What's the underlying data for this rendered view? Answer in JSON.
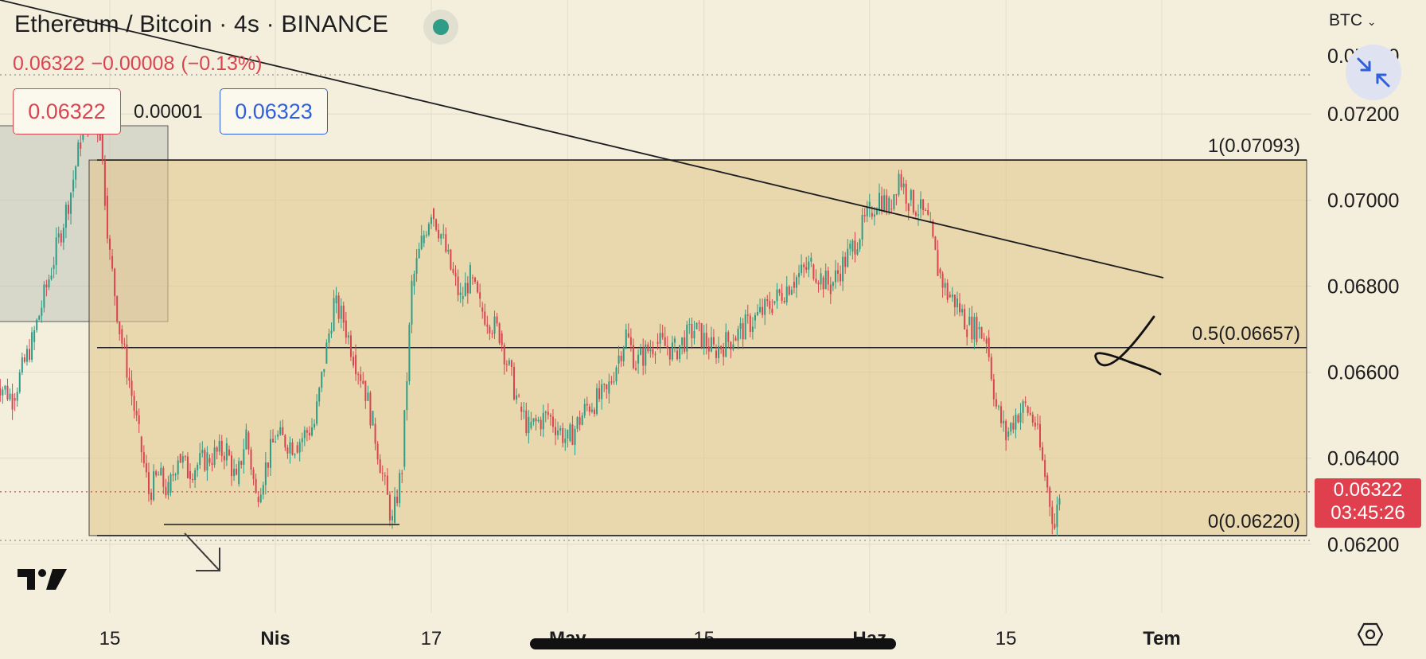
{
  "header": {
    "title": "Ethereum / Bitcoin · 4s · BINANCE",
    "last": "0.06322",
    "change": "−0.00008",
    "change_pct": "(−0.13%)",
    "bid": "0.06322",
    "spread": "0.00001",
    "ask": "0.06323",
    "currency": "BTC"
  },
  "price_tag": {
    "price": "0.06322",
    "countdown": "03:45:26"
  },
  "colors": {
    "background": "#f3efdc",
    "up": "#2e9c86",
    "down": "#d94450",
    "zone": "#e3c68f",
    "live_dot": "#2e9c86",
    "bid_border": "#d94450",
    "ask_border": "#2f5fdb"
  },
  "icons": {
    "live": "live-status-dot",
    "collapse": "collapse-arrows-icon",
    "settings": "settings-hexagon-icon",
    "logo": "tradingview-logo-icon"
  },
  "chart_data": {
    "type": "candlestick",
    "symbol": "ETHBTC",
    "y_axis": {
      "ticks": [
        "0.07200",
        "0.07000",
        "0.06800",
        "0.06600",
        "0.06400",
        "0.06200"
      ],
      "top_partial_tick": "0.07400",
      "range": [
        0.0617,
        0.07465
      ]
    },
    "x_axis": {
      "labels": [
        {
          "label": "15",
          "date": "2023-03-15"
        },
        {
          "label": "Nis",
          "date": "2023-04-01"
        },
        {
          "label": "17",
          "date": "2023-04-17"
        },
        {
          "label": "May",
          "date": "2023-05-01"
        },
        {
          "label": "15",
          "date": "2023-05-15"
        },
        {
          "label": "Haz",
          "date": "2023-06-01"
        },
        {
          "label": "15",
          "date": "2023-06-15"
        },
        {
          "label": "Tem",
          "date": "2023-07-01"
        }
      ]
    },
    "fib_levels": [
      {
        "label": "1(0.07093)",
        "value": 0.07093
      },
      {
        "label": "0.5(0.06657)",
        "value": 0.06657
      },
      {
        "label": "0(0.06220)",
        "value": 0.0622
      }
    ],
    "price_line": 0.06322,
    "price_series": [
      [
        "2023-03-03",
        0.0659
      ],
      [
        "2023-03-05",
        0.0654
      ],
      [
        "2023-03-07",
        0.0667
      ],
      [
        "2023-03-09",
        0.0684
      ],
      [
        "2023-03-11",
        0.0702
      ],
      [
        "2023-03-12",
        0.0714
      ],
      [
        "2023-03-13",
        0.072
      ],
      [
        "2023-03-14",
        0.0716
      ],
      [
        "2023-03-14T12",
        0.0701
      ],
      [
        "2023-03-15",
        0.0687
      ],
      [
        "2023-03-16",
        0.067
      ],
      [
        "2023-03-17",
        0.0658
      ],
      [
        "2023-03-18",
        0.0645
      ],
      [
        "2023-03-19",
        0.0632
      ],
      [
        "2023-03-20",
        0.0636
      ],
      [
        "2023-03-21",
        0.0632
      ],
      [
        "2023-03-22",
        0.0641
      ],
      [
        "2023-03-23",
        0.0637
      ],
      [
        "2023-03-25",
        0.064
      ],
      [
        "2023-03-27",
        0.0642
      ],
      [
        "2023-03-28",
        0.0634
      ],
      [
        "2023-03-29",
        0.0646
      ],
      [
        "2023-03-30",
        0.0631
      ],
      [
        "2023-04-01",
        0.0645
      ],
      [
        "2023-04-03",
        0.0643
      ],
      [
        "2023-04-05",
        0.0648
      ],
      [
        "2023-04-06",
        0.0662
      ],
      [
        "2023-04-07",
        0.0676
      ],
      [
        "2023-04-08",
        0.0672
      ],
      [
        "2023-04-09",
        0.0664
      ],
      [
        "2023-04-10",
        0.0658
      ],
      [
        "2023-04-11",
        0.0648
      ],
      [
        "2023-04-12",
        0.0636
      ],
      [
        "2023-04-13",
        0.0625
      ],
      [
        "2023-04-14",
        0.0638
      ],
      [
        "2023-04-15",
        0.068
      ],
      [
        "2023-04-16",
        0.069
      ],
      [
        "2023-04-17",
        0.0698
      ],
      [
        "2023-04-18",
        0.0692
      ],
      [
        "2023-04-19",
        0.0684
      ],
      [
        "2023-04-20",
        0.0677
      ],
      [
        "2023-04-21",
        0.0682
      ],
      [
        "2023-04-22",
        0.0675
      ],
      [
        "2023-04-24",
        0.0669
      ],
      [
        "2023-04-26",
        0.0652
      ],
      [
        "2023-04-27",
        0.0647
      ],
      [
        "2023-04-29",
        0.065
      ],
      [
        "2023-05-01",
        0.0644
      ],
      [
        "2023-05-03",
        0.0652
      ],
      [
        "2023-05-05",
        0.0655
      ],
      [
        "2023-05-06",
        0.0662
      ],
      [
        "2023-05-07",
        0.0669
      ],
      [
        "2023-05-08",
        0.0662
      ],
      [
        "2023-05-10",
        0.0667
      ],
      [
        "2023-05-12",
        0.0665
      ],
      [
        "2023-05-14",
        0.067
      ],
      [
        "2023-05-16",
        0.0665
      ],
      [
        "2023-05-18",
        0.0668
      ],
      [
        "2023-05-20",
        0.0672
      ],
      [
        "2023-05-22",
        0.0676
      ],
      [
        "2023-05-24",
        0.0681
      ],
      [
        "2023-05-26",
        0.0685
      ],
      [
        "2023-05-27",
        0.0682
      ],
      [
        "2023-05-28",
        0.068
      ],
      [
        "2023-05-30",
        0.0688
      ],
      [
        "2023-06-01",
        0.0697
      ],
      [
        "2023-06-02",
        0.0701
      ],
      [
        "2023-06-03",
        0.0698
      ],
      [
        "2023-06-04",
        0.0706
      ],
      [
        "2023-06-05",
        0.07
      ],
      [
        "2023-06-06",
        0.0698
      ],
      [
        "2023-06-07",
        0.0695
      ],
      [
        "2023-06-08",
        0.0684
      ],
      [
        "2023-06-09",
        0.0678
      ],
      [
        "2023-06-10",
        0.0676
      ],
      [
        "2023-06-11",
        0.0671
      ],
      [
        "2023-06-12",
        0.067
      ],
      [
        "2023-06-13",
        0.0668
      ],
      [
        "2023-06-14",
        0.0652
      ],
      [
        "2023-06-15",
        0.0645
      ],
      [
        "2023-06-16",
        0.065
      ],
      [
        "2023-06-17",
        0.0652
      ],
      [
        "2023-06-18",
        0.0648
      ],
      [
        "2023-06-19",
        0.0636
      ],
      [
        "2023-06-20",
        0.0624
      ],
      [
        "2023-06-20T12",
        0.0632
      ]
    ]
  }
}
